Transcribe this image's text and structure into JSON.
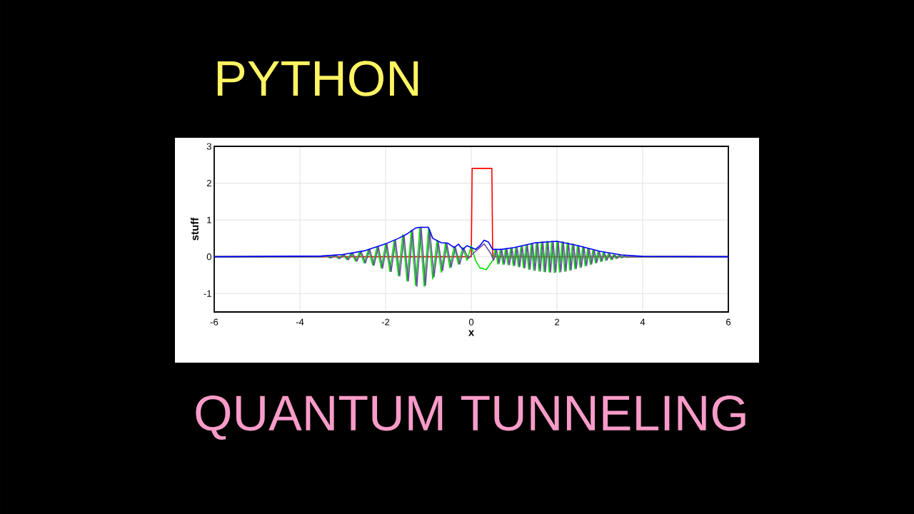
{
  "chart_data": {
    "type": "line",
    "title": "PYTHON",
    "subtitle": "QUANTUM TUNNELING",
    "xlabel": "x",
    "ylabel": "stuff",
    "xlim": [
      -6,
      6
    ],
    "ylim": [
      -1.5,
      3
    ],
    "xticks": [
      -6,
      -4,
      -2,
      0,
      2,
      4,
      6
    ],
    "yticks": [
      -1,
      0,
      1,
      2,
      3
    ],
    "grid": true,
    "series": [
      {
        "color": "#ff0000",
        "x": [
          -6,
          0,
          0.02,
          0.48,
          0.5,
          6
        ],
        "values": [
          0,
          0,
          2.4,
          2.4,
          0,
          0
        ]
      },
      {
        "color": "#00e000",
        "x": [
          -6,
          -3.5,
          -3.4,
          -3.3,
          -3.2,
          -3.1,
          -3.0,
          -2.9,
          -2.8,
          -2.7,
          -2.6,
          -2.5,
          -2.4,
          -2.3,
          -2.2,
          -2.1,
          -2.0,
          -1.9,
          -1.8,
          -1.7,
          -1.6,
          -1.5,
          -1.4,
          -1.3,
          -1.2,
          -1.1,
          -1.0,
          -0.9,
          -0.8,
          -0.7,
          -0.6,
          -0.5,
          -0.4,
          -0.3,
          -0.2,
          -0.1,
          0,
          0.1,
          0.2,
          0.35,
          0.5,
          0.56,
          0.62,
          0.68,
          0.74,
          0.8,
          0.86,
          0.92,
          0.98,
          1.04,
          1.1,
          1.16,
          1.22,
          1.28,
          1.34,
          1.4,
          1.46,
          1.52,
          1.58,
          1.64,
          1.7,
          1.76,
          1.82,
          1.88,
          1.94,
          2.0,
          2.06,
          2.12,
          2.18,
          2.24,
          2.3,
          2.36,
          2.42,
          2.48,
          2.54,
          2.6,
          2.66,
          2.72,
          2.78,
          2.84,
          2.9,
          2.96,
          3.02,
          3.08,
          3.14,
          3.2,
          3.26,
          3.32,
          3.38,
          3.44,
          3.5,
          3.56,
          3.62,
          3.68,
          3.8,
          6
        ],
        "values": [
          0,
          0,
          0.02,
          -0.03,
          0.04,
          -0.05,
          0.06,
          -0.08,
          0.1,
          -0.12,
          0.14,
          -0.17,
          0.2,
          -0.23,
          0.27,
          -0.31,
          0.35,
          -0.4,
          0.45,
          -0.52,
          0.6,
          -0.66,
          0.72,
          -0.78,
          0.8,
          -0.8,
          0.75,
          -0.6,
          0.45,
          -0.42,
          0.38,
          -0.3,
          0.28,
          -0.2,
          0.25,
          -0.1,
          0.3,
          -0.1,
          -0.3,
          -0.35,
          -0.1,
          0.2,
          -0.2,
          0.2,
          -0.21,
          0.22,
          -0.22,
          0.23,
          -0.24,
          0.25,
          -0.27,
          0.28,
          -0.3,
          0.32,
          -0.34,
          0.35,
          -0.37,
          0.38,
          -0.39,
          0.4,
          -0.41,
          0.42,
          -0.42,
          0.43,
          -0.43,
          0.42,
          -0.42,
          0.41,
          -0.4,
          0.38,
          -0.37,
          0.35,
          -0.33,
          0.31,
          -0.29,
          0.27,
          -0.25,
          0.23,
          -0.21,
          0.19,
          -0.17,
          0.15,
          -0.13,
          0.12,
          -0.1,
          0.09,
          -0.08,
          0.06,
          -0.05,
          0.04,
          -0.03,
          0.03,
          -0.02,
          0.01,
          0,
          0
        ]
      },
      {
        "color": "#6a4ca0",
        "x": [
          -6,
          -3.47,
          -3.37,
          -3.27,
          -3.17,
          -3.07,
          -2.97,
          -2.87,
          -2.77,
          -2.67,
          -2.57,
          -2.47,
          -2.37,
          -2.27,
          -2.17,
          -2.07,
          -1.97,
          -1.87,
          -1.77,
          -1.67,
          -1.57,
          -1.47,
          -1.37,
          -1.27,
          -1.17,
          -1.07,
          -0.97,
          -0.87,
          -0.77,
          -0.67,
          -0.57,
          -0.47,
          -0.37,
          -0.27,
          -0.17,
          -0.07,
          0.05,
          0.15,
          0.3,
          0.45,
          0.52,
          0.59,
          0.65,
          0.71,
          0.77,
          0.83,
          0.89,
          0.95,
          1.01,
          1.07,
          1.13,
          1.19,
          1.25,
          1.31,
          1.37,
          1.43,
          1.49,
          1.55,
          1.61,
          1.67,
          1.73,
          1.79,
          1.85,
          1.91,
          1.97,
          2.03,
          2.09,
          2.15,
          2.21,
          2.27,
          2.33,
          2.39,
          2.45,
          2.51,
          2.57,
          2.63,
          2.69,
          2.75,
          2.81,
          2.87,
          2.93,
          2.99,
          3.05,
          3.11,
          3.17,
          3.23,
          3.29,
          3.35,
          3.41,
          3.47,
          3.53,
          3.59,
          3.65,
          3.8,
          6
        ],
        "values": [
          0,
          0,
          0.02,
          -0.03,
          0.04,
          -0.05,
          0.06,
          -0.08,
          0.1,
          -0.12,
          0.14,
          -0.17,
          0.2,
          -0.23,
          0.27,
          -0.31,
          0.35,
          -0.4,
          0.45,
          -0.52,
          0.58,
          -0.66,
          0.7,
          -0.8,
          0.78,
          -0.78,
          0.72,
          -0.55,
          0.4,
          -0.38,
          0.35,
          -0.28,
          0.25,
          -0.2,
          0.22,
          -0.05,
          0.1,
          0.2,
          0.35,
          0.1,
          -0.1,
          0.18,
          -0.18,
          0.19,
          -0.2,
          0.21,
          -0.22,
          0.23,
          -0.24,
          0.25,
          -0.27,
          0.28,
          -0.3,
          0.32,
          -0.34,
          0.35,
          -0.37,
          0.38,
          -0.39,
          0.4,
          -0.41,
          0.41,
          -0.42,
          0.42,
          -0.42,
          0.41,
          -0.41,
          0.4,
          -0.39,
          0.37,
          -0.36,
          0.34,
          -0.32,
          0.3,
          -0.28,
          0.26,
          -0.24,
          0.22,
          -0.2,
          0.18,
          -0.16,
          0.14,
          -0.12,
          0.11,
          -0.09,
          0.08,
          -0.07,
          0.05,
          -0.04,
          0.03,
          -0.02,
          0.02,
          -0.01,
          0,
          0
        ]
      },
      {
        "color": "#0000ff",
        "x": [
          -6,
          -3.5,
          -3.0,
          -2.5,
          -2.0,
          -1.7,
          -1.5,
          -1.3,
          -1.2,
          -1.0,
          -0.9,
          -0.7,
          -0.55,
          -0.4,
          -0.3,
          -0.2,
          -0.1,
          0,
          0.1,
          0.2,
          0.3,
          0.4,
          0.5,
          0.7,
          1.0,
          1.5,
          2.0,
          2.5,
          3.0,
          3.5,
          4.0,
          6
        ],
        "values": [
          0,
          0.02,
          0.06,
          0.16,
          0.35,
          0.5,
          0.62,
          0.78,
          0.8,
          0.8,
          0.5,
          0.38,
          0.37,
          0.25,
          0.34,
          0.2,
          0.3,
          0.25,
          0.2,
          0.3,
          0.45,
          0.4,
          0.2,
          0.2,
          0.25,
          0.38,
          0.42,
          0.3,
          0.15,
          0.05,
          0.01,
          0
        ]
      }
    ]
  }
}
